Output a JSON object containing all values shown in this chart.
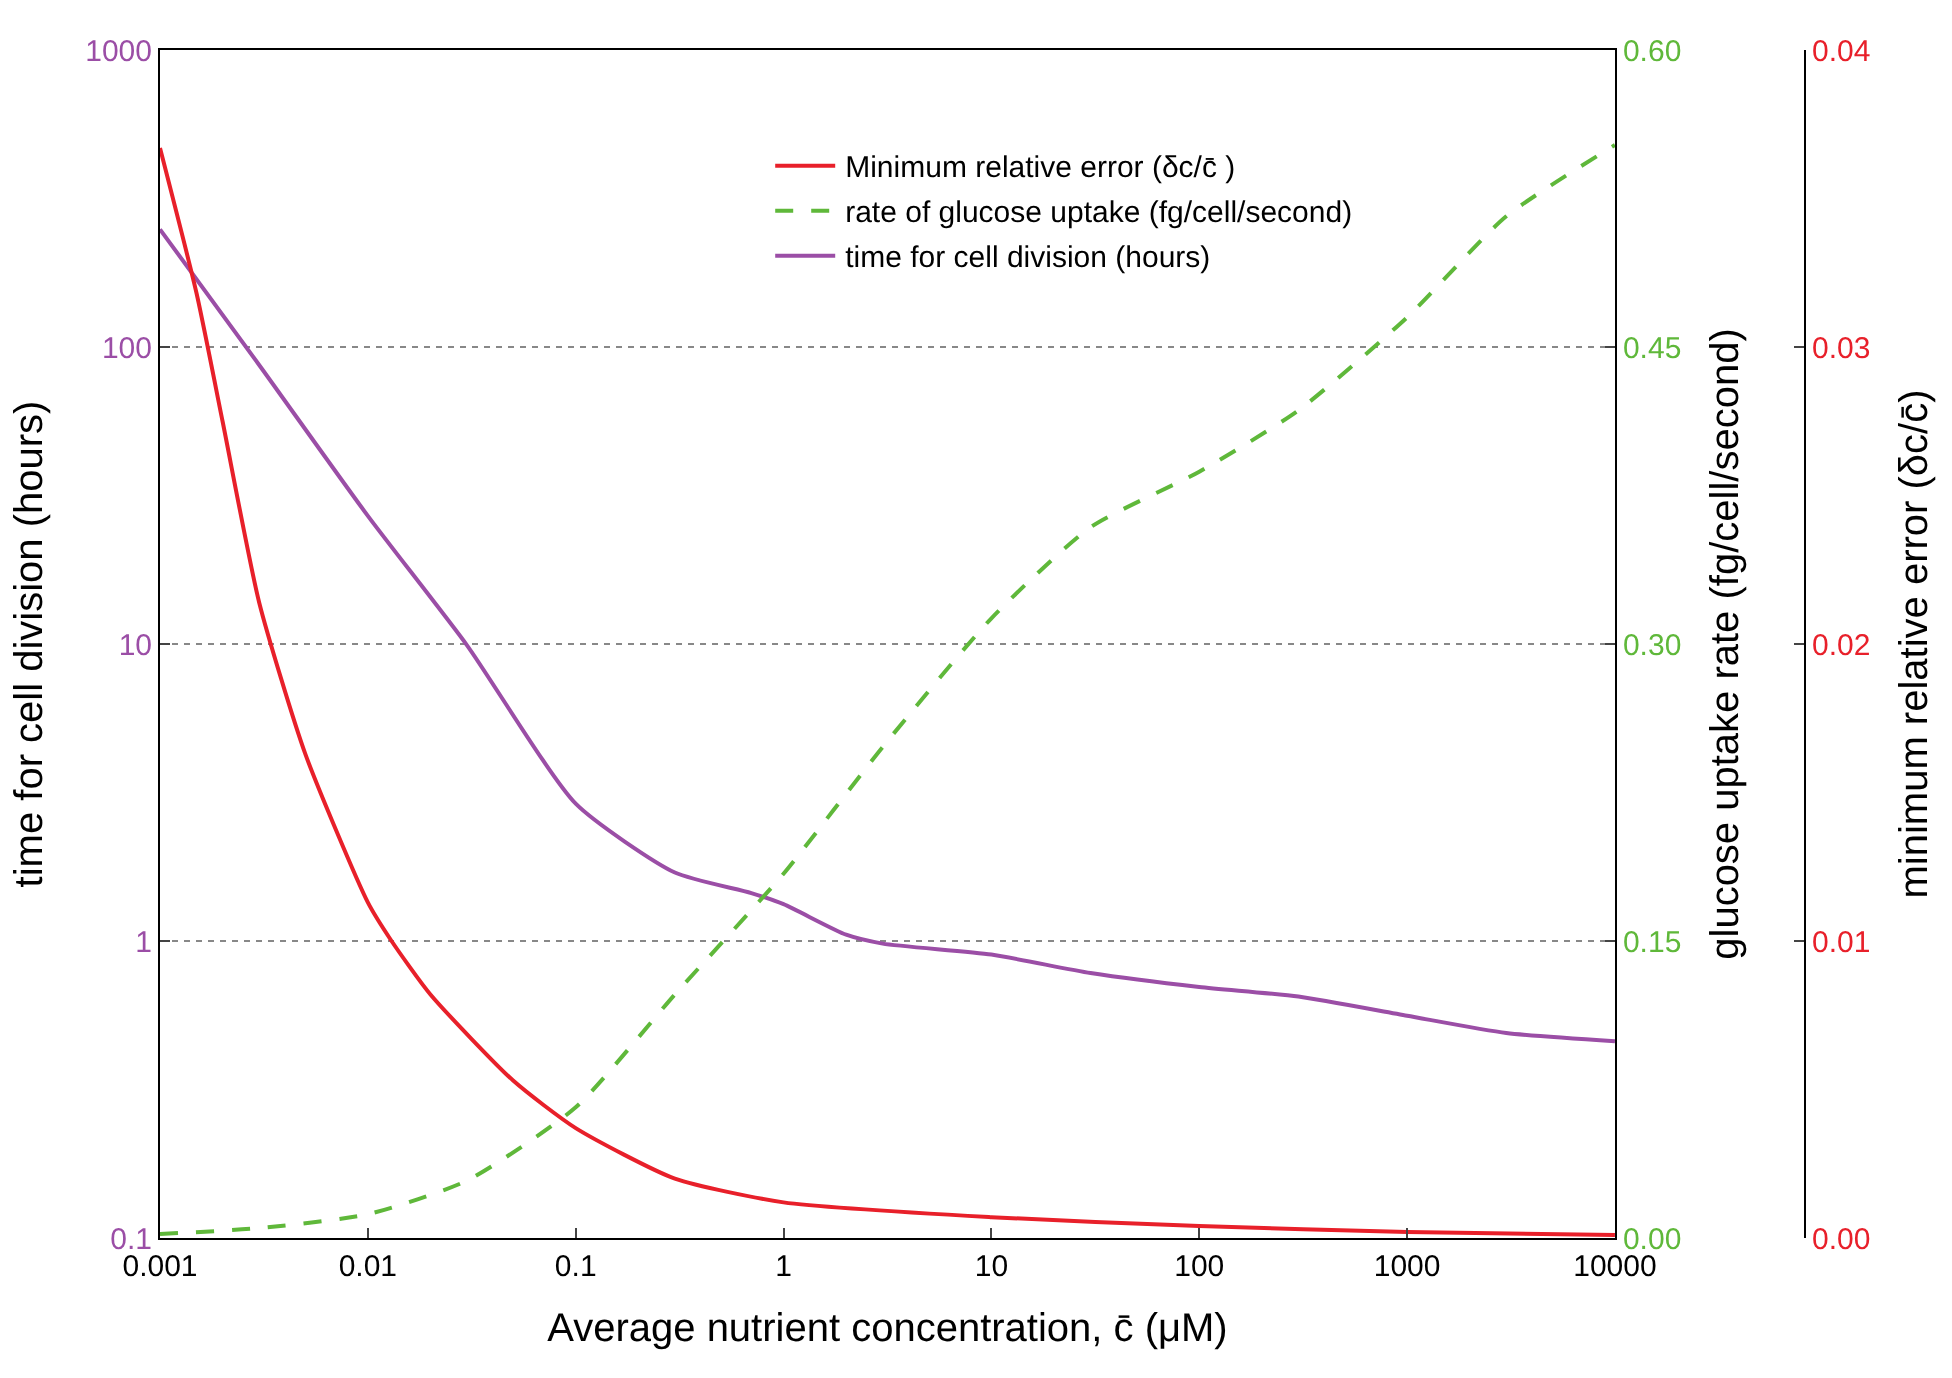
{
  "chart_data": {
    "type": "line",
    "xlabel": "Average nutrient concentration, c̄ (μM)",
    "ylabel": "time for cell division (hours)",
    "y2label": "glucose uptake rate (fg/cell/second)",
    "y3label": "minimum relative error (δc/c̄)",
    "log": "xy",
    "grid": "y",
    "legend": "top",
    "line_style": "solid",
    "xlim": [
      0.001,
      10000
    ],
    "xticks": [
      0.001,
      0.01,
      0.1,
      1,
      10,
      100,
      1000,
      10000
    ],
    "ylim": [
      0.1,
      1000
    ],
    "yticks": [
      0.1,
      1,
      10,
      100,
      1000
    ],
    "y2lim": [
      0,
      0.6
    ],
    "y2ticks": [
      {
        "value": 0,
        "label": "0.00"
      },
      {
        "value": 0.15,
        "label": "0.15"
      },
      {
        "value": 0.3,
        "label": "0.30"
      },
      {
        "value": 0.45,
        "label": "0.45"
      },
      {
        "value": 0.6,
        "label": "0.60"
      }
    ],
    "y3lim": [
      0,
      0.04
    ],
    "y3ticks": [
      {
        "value": 0,
        "label": "0.00"
      },
      {
        "value": 0.01,
        "label": "0.01"
      },
      {
        "value": 0.02,
        "label": "0.02"
      },
      {
        "value": 0.03,
        "label": "0.03"
      },
      {
        "value": 0.04,
        "label": "0.04"
      }
    ],
    "series": [
      {
        "name": "Minimum relative error (δc/c̄ )",
        "color": "#e8202a",
        "axis": "y3",
        "x": [
          0.001,
          0.0015,
          0.002,
          0.003,
          0.005,
          0.01,
          0.013,
          0.02,
          0.05,
          0.1,
          0.3,
          1,
          10,
          100,
          1000,
          10000
        ],
        "values": [
          0.0367,
          0.0318,
          0.0275,
          0.0214,
          0.0163,
          0.0113,
          0.01,
          0.0082,
          0.0053,
          0.0037,
          0.002,
          0.0012,
          0.0007,
          0.0004,
          0.0002,
          0.0001
        ]
      },
      {
        "name": "rate of glucose uptake (fg/cell/second)",
        "color": "#5fb83a",
        "axis": "y2",
        "line_style": "dashed",
        "x": [
          0.001,
          0.003,
          0.01,
          0.03,
          0.1,
          0.3,
          1,
          3,
          10,
          30,
          100,
          300,
          1000,
          3000,
          10000
        ],
        "values": [
          0.002,
          0.005,
          0.012,
          0.029,
          0.066,
          0.123,
          0.184,
          0.248,
          0.313,
          0.359,
          0.387,
          0.418,
          0.465,
          0.516,
          0.552
        ]
      },
      {
        "name": "time for cell division (hours)",
        "color": "#9b4ea6",
        "x": [
          0.001,
          0.003,
          0.01,
          0.03,
          0.1,
          0.3,
          0.7,
          1,
          2,
          3,
          10,
          30,
          100,
          300,
          1000,
          3000,
          10000
        ],
        "values": [
          249,
          87,
          27,
          9.9,
          2.9,
          1.7,
          1.45,
          1.33,
          1.05,
          0.98,
          0.9,
          0.78,
          0.7,
          0.65,
          0.56,
          0.49,
          0.46
        ]
      }
    ]
  }
}
